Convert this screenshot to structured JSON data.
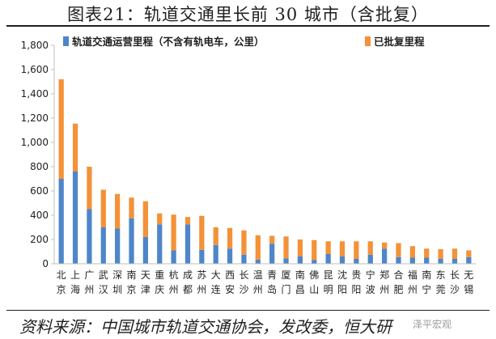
{
  "figure": {
    "title": "图表21：轨道交通里长前 30 城市（含批复）",
    "source": "资料来源：中国城市轨道交通协会，发改委，恒大研",
    "watermark": "泽平宏观"
  },
  "colors": {
    "operating": "#4e86c9",
    "approved": "#f39238",
    "axis": "#bfbfbf",
    "text": "#1f1f1f"
  },
  "chart_data": {
    "type": "bar",
    "stacked": true,
    "categories": [
      "北京",
      "上海",
      "广州",
      "武汉",
      "深圳",
      "南京",
      "天津",
      "重庆",
      "杭州",
      "成都",
      "苏州",
      "大连",
      "西安",
      "长沙",
      "温州",
      "青岛",
      "厦门",
      "南昌",
      "佛山",
      "昆明",
      "沈阳",
      "贵阳",
      "宁波",
      "郑州",
      "合肥",
      "福州",
      "南宁",
      "东莞",
      "长沙",
      "无锡"
    ],
    "series": [
      {
        "name": "轨道交通运营里程（不含有轨电车，公里）",
        "values": [
          700,
          760,
          450,
          300,
          290,
          375,
          220,
          325,
          110,
          325,
          115,
          155,
          125,
          75,
          35,
          165,
          45,
          60,
          30,
          80,
          60,
          40,
          75,
          125,
          55,
          50,
          50,
          40,
          40,
          55
        ]
      },
      {
        "name": "已批复里程",
        "values": [
          820,
          395,
          350,
          310,
          285,
          170,
          295,
          90,
          295,
          60,
          280,
          145,
          170,
          200,
          200,
          65,
          180,
          140,
          165,
          105,
          125,
          145,
          110,
          50,
          115,
          95,
          75,
          80,
          85,
          55
        ]
      }
    ],
    "ylim": [
      0,
      1800
    ],
    "yticks": [
      0,
      200,
      400,
      600,
      800,
      1000,
      1200,
      1400,
      1600,
      1800
    ],
    "ytick_labels": [
      "0",
      "200",
      "400",
      "600",
      "800",
      "1,000",
      "1,200",
      "1,400",
      "1,600",
      "1,800"
    ],
    "legend_position": "top",
    "grid": false
  }
}
